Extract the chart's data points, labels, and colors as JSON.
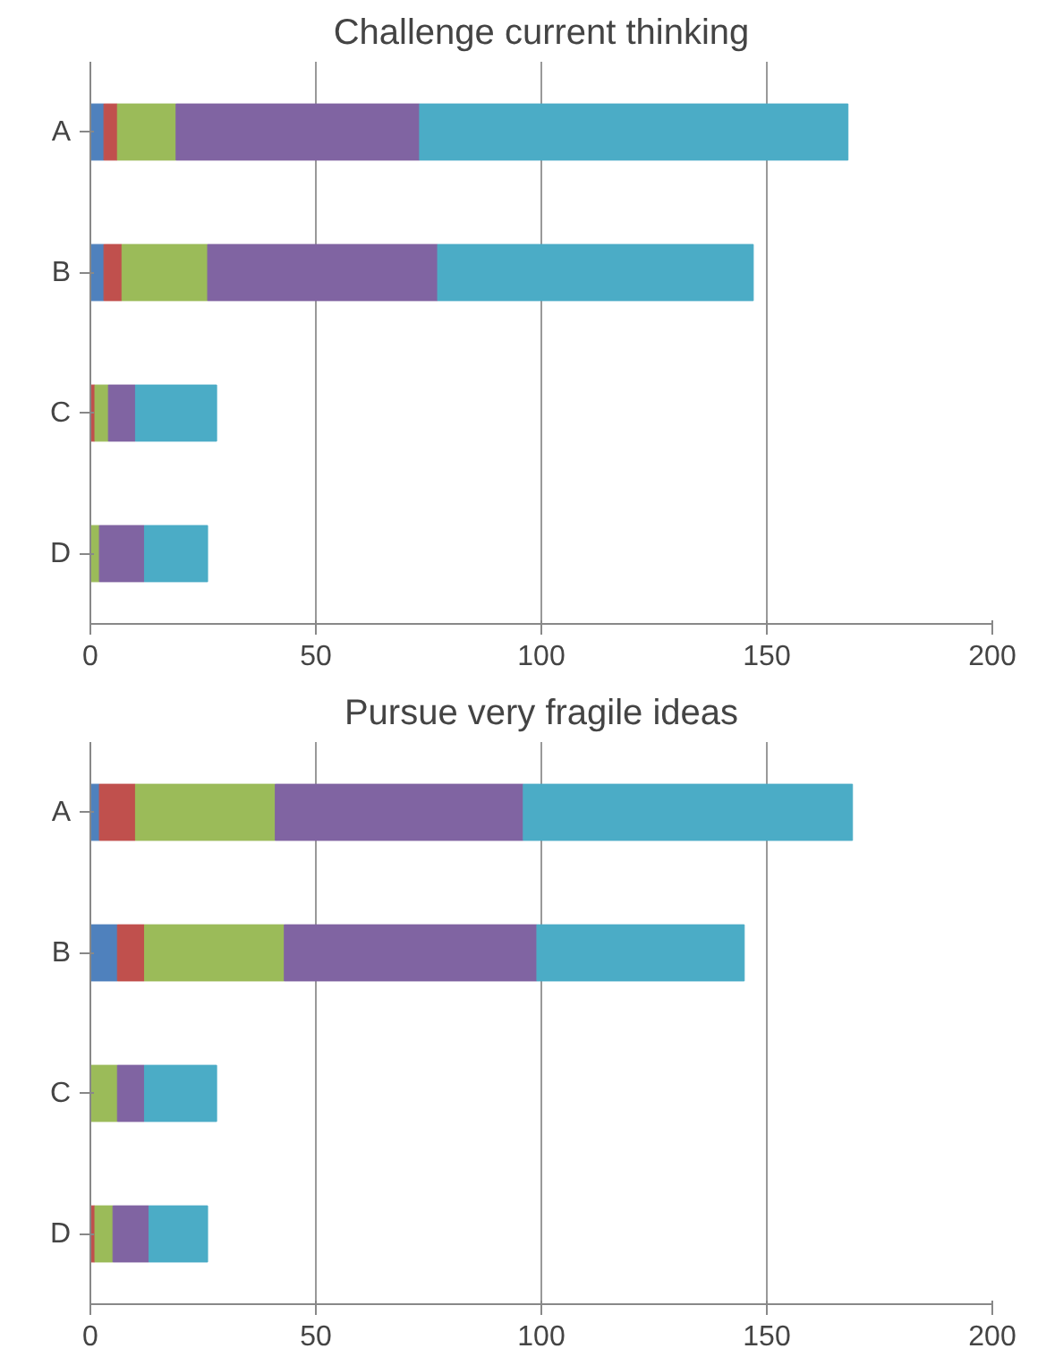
{
  "chart_data": [
    {
      "type": "bar",
      "title": "Challenge current thinking",
      "orientation": "horizontal",
      "stacked": true,
      "categories": [
        "A",
        "B",
        "C",
        "D"
      ],
      "xlim": [
        0,
        200
      ],
      "xticks": [
        0,
        50,
        100,
        150,
        200
      ],
      "grid": "x",
      "series": [
        {
          "color": "#4f81bd",
          "values": [
            3,
            3,
            0,
            0
          ]
        },
        {
          "color": "#c0504d",
          "values": [
            3,
            4,
            1,
            0
          ]
        },
        {
          "color": "#9bbb59",
          "values": [
            13,
            19,
            3,
            2
          ]
        },
        {
          "color": "#8064a2",
          "values": [
            54,
            51,
            6,
            10
          ]
        },
        {
          "color": "#4bacc6",
          "values": [
            95,
            70,
            18,
            14
          ]
        }
      ]
    },
    {
      "type": "bar",
      "title": "Pursue very fragile ideas",
      "orientation": "horizontal",
      "stacked": true,
      "categories": [
        "A",
        "B",
        "C",
        "D"
      ],
      "xlim": [
        0,
        200
      ],
      "xticks": [
        0,
        50,
        100,
        150,
        200
      ],
      "grid": "x",
      "series": [
        {
          "color": "#4f81bd",
          "values": [
            2,
            6,
            0,
            0
          ]
        },
        {
          "color": "#c0504d",
          "values": [
            8,
            6,
            0,
            1
          ]
        },
        {
          "color": "#9bbb59",
          "values": [
            31,
            31,
            6,
            4
          ]
        },
        {
          "color": "#8064a2",
          "values": [
            55,
            56,
            6,
            8
          ]
        },
        {
          "color": "#4bacc6",
          "values": [
            73,
            46,
            16,
            13
          ]
        }
      ]
    }
  ]
}
